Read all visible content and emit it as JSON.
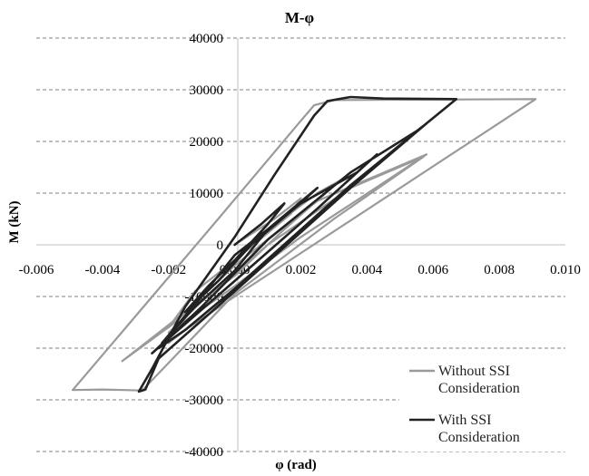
{
  "chart_data": {
    "type": "line",
    "title": "M-φ",
    "xlabel": "φ (rad)",
    "ylabel": "M (kN)",
    "xlim": [
      -0.006,
      0.01
    ],
    "ylim": [
      -40000,
      40000
    ],
    "x_ticks": [
      "-0.006",
      "-0.004",
      "-0.002",
      "0.000",
      "0.002",
      "0.004",
      "0.006",
      "0.008",
      "0.010"
    ],
    "y_ticks": [
      "-40000",
      "-30000",
      "-20000",
      "-10000",
      "0",
      "10000",
      "20000",
      "30000",
      "40000"
    ],
    "grid": "horizontal dashed",
    "legend_position": "bottom-right",
    "series": [
      {
        "name": "Without SSI Consideration",
        "color": "#9a9a9a",
        "points": [
          [
            0.0,
            0
          ],
          [
            0.0012,
            5000
          ],
          [
            0.002,
            9000
          ],
          [
            0.0017,
            6000
          ],
          [
            0.0,
            -3000
          ],
          [
            -0.0012,
            -9000
          ],
          [
            -0.002,
            -16000
          ],
          [
            -0.001,
            -10000
          ],
          [
            0.0,
            -2000
          ],
          [
            0.0025,
            10000
          ],
          [
            0.0032,
            12500
          ],
          [
            0.0015,
            3000
          ],
          [
            0.0,
            -6000
          ],
          [
            -0.0015,
            -13000
          ],
          [
            -0.0034,
            -22500
          ],
          [
            -0.0018,
            -15000
          ],
          [
            0.0,
            -4000
          ],
          [
            0.0025,
            8500
          ],
          [
            0.0058,
            17500
          ],
          [
            0.0045,
            12000
          ],
          [
            0.002,
            1500
          ],
          [
            0.0,
            -8000
          ],
          [
            -0.002,
            -17000
          ],
          [
            -0.001,
            -11000
          ],
          [
            0.001,
            0
          ],
          [
            0.0035,
            11000
          ],
          [
            0.0057,
            17000
          ],
          [
            0.003,
            5000
          ],
          [
            0.0,
            -9500
          ],
          [
            -0.0028,
            -28200
          ],
          [
            -0.004,
            -28000
          ],
          [
            -0.0049,
            -28100
          ],
          [
            -0.0005,
            5000
          ],
          [
            0.002,
            24000
          ],
          [
            0.0024,
            27000
          ],
          [
            0.003,
            28000
          ],
          [
            0.0091,
            28200
          ],
          [
            0.0,
            -10000
          ],
          [
            -0.0015,
            -16500
          ],
          [
            -0.002,
            -19000
          ]
        ]
      },
      {
        "name": "With SSI Consideration",
        "color": "#222222",
        "points": [
          [
            0.0,
            0
          ],
          [
            0.0008,
            4000
          ],
          [
            0.0015,
            8000
          ],
          [
            0.001,
            4000
          ],
          [
            0.0,
            -3000
          ],
          [
            -0.0008,
            -8000
          ],
          [
            -0.0015,
            -13000
          ],
          [
            -0.0005,
            -7000
          ],
          [
            0.0005,
            0
          ],
          [
            0.0018,
            7000
          ],
          [
            0.0025,
            11000
          ],
          [
            0.001,
            3000
          ],
          [
            0.0,
            -5000
          ],
          [
            -0.0012,
            -12000
          ],
          [
            -0.0022,
            -19000
          ],
          [
            -0.001,
            -10000
          ],
          [
            0.0,
            -2000
          ],
          [
            0.002,
            8000
          ],
          [
            0.0037,
            14000
          ],
          [
            0.0043,
            17500
          ],
          [
            0.0025,
            7000
          ],
          [
            0.0,
            -7000
          ],
          [
            -0.0018,
            -17000
          ],
          [
            -0.0025,
            -21000
          ],
          [
            -0.001,
            -12000
          ],
          [
            0.001,
            1000
          ],
          [
            0.0035,
            14000
          ],
          [
            0.0055,
            22000
          ],
          [
            0.0058,
            23500
          ],
          [
            0.0035,
            11000
          ],
          [
            0.0,
            -9000
          ],
          [
            -0.0023,
            -22000
          ],
          [
            -0.0027,
            -28000
          ],
          [
            -0.0029,
            -28400
          ],
          [
            -0.0025,
            -24000
          ],
          [
            -0.0015,
            -12000
          ],
          [
            0.0,
            1500
          ],
          [
            0.0012,
            13500
          ],
          [
            0.0024,
            25000
          ],
          [
            0.0028,
            27800
          ],
          [
            0.0035,
            28600
          ],
          [
            0.0045,
            28300
          ],
          [
            0.0067,
            28200
          ],
          [
            0.0035,
            11500
          ],
          [
            0.0,
            -8500
          ],
          [
            -0.0015,
            -16500
          ],
          [
            -0.0023,
            -20000
          ]
        ]
      }
    ]
  }
}
